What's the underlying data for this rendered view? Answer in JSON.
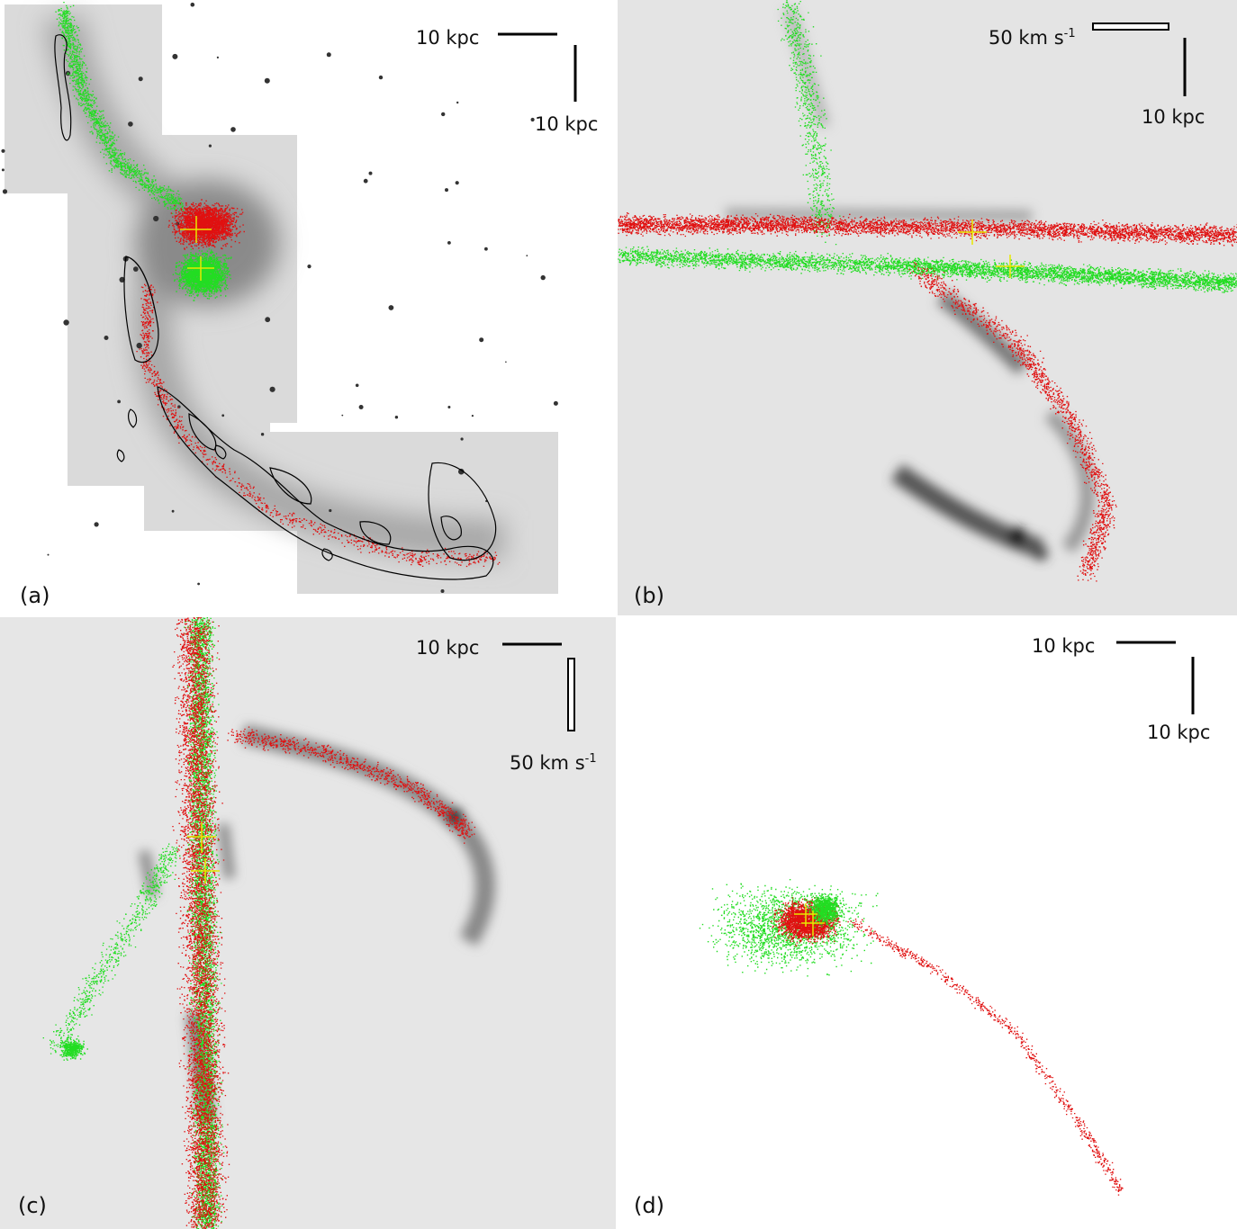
{
  "panels": {
    "a": {
      "label": "(a)",
      "scale_h": "10 kpc",
      "scale_v": "10 kpc"
    },
    "b": {
      "label": "(b)",
      "scale_vel": "50 km s",
      "scale_vel_exp": "-1",
      "scale_v": "10 kpc"
    },
    "c": {
      "label": "(c)",
      "scale_h": "10 kpc",
      "scale_vel": "50 km s",
      "scale_vel_exp": "-1"
    },
    "d": {
      "label": "(d)",
      "scale_h": "10 kpc",
      "scale_v": "10 kpc"
    }
  },
  "colors": {
    "particles_red": "#e01010",
    "particles_green": "#22dd22",
    "centre_cross": "#e8e800",
    "contour": "#000000"
  }
}
